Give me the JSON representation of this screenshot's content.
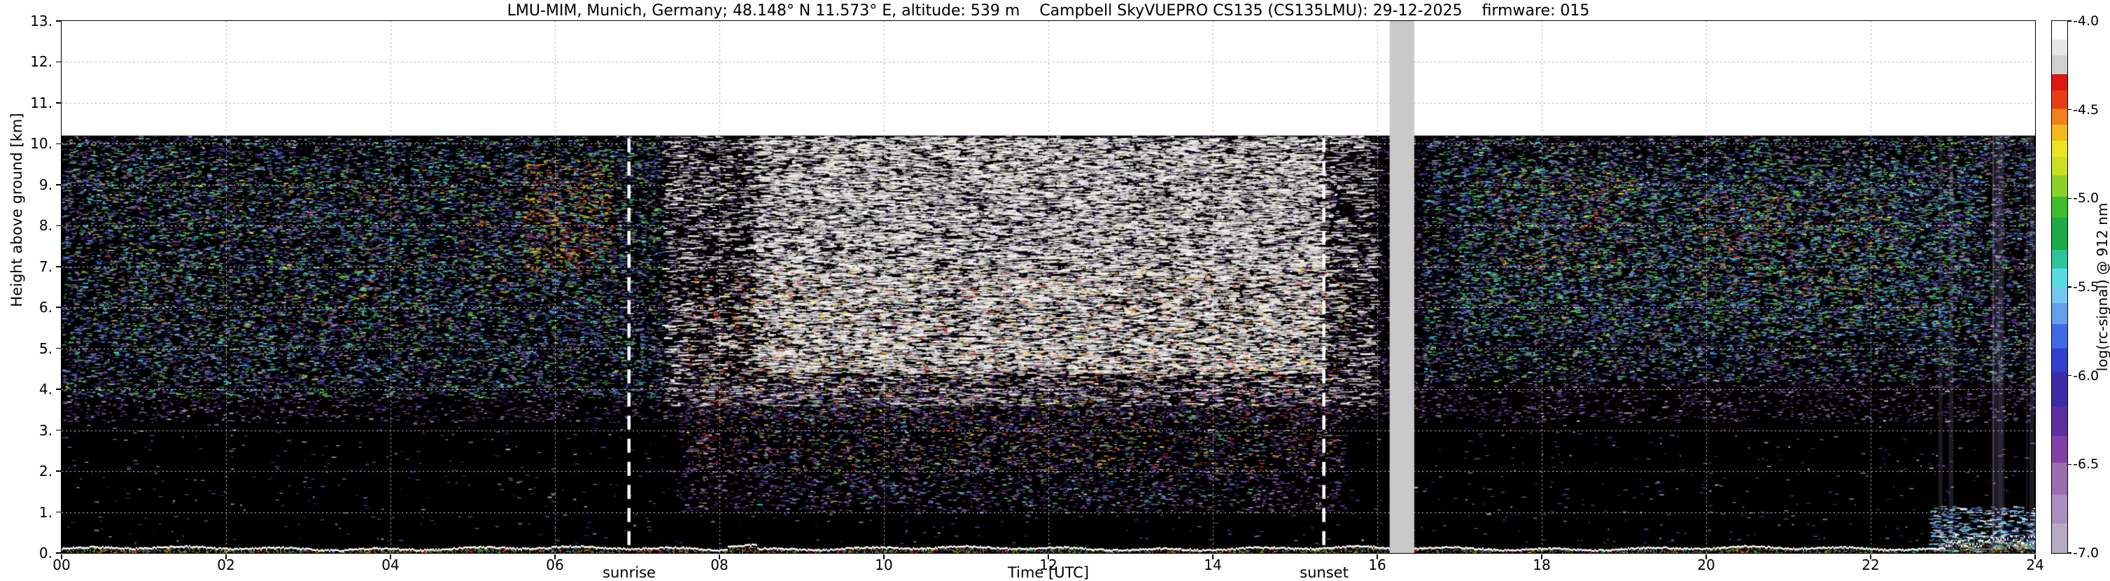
{
  "chart_data": {
    "type": "heatmap",
    "title": "LMU-MIM, Munich, Germany; 48.148° N 11.573° E, altitude: 539 m    Campbell SkyVUEPRO CS135 (CS135LMU): 29-12-2025    firmware: 015",
    "xlabel": "Time [UTC]",
    "ylabel": "Height above ground [km]",
    "xlim": [
      0,
      24
    ],
    "ylim": [
      0,
      13
    ],
    "x_ticks": [
      "00",
      "02",
      "04",
      "06",
      "08",
      "10",
      "12",
      "14",
      "16",
      "18",
      "20",
      "22",
      "24"
    ],
    "y_ticks": [
      "0.",
      "1.",
      "2.",
      "3.",
      "4.",
      "5.",
      "6.",
      "7.",
      "8.",
      "9.",
      "10.",
      "11.",
      "12.",
      "13."
    ],
    "grid": {
      "x_interval_hours": 2,
      "z_interval_km": 1,
      "style": "dotted"
    },
    "max_signal_height_km": 10.2,
    "background_above_signal": "#ffffff",
    "background_signal_area": "#000000",
    "annotations": [
      {
        "label": "sunrise",
        "x": 6.9,
        "style": "white-dashed-vline"
      },
      {
        "label": "sunset",
        "x": 15.35,
        "style": "white-dashed-vline"
      }
    ],
    "data_gap": {
      "x": [
        16.15,
        16.45
      ],
      "color": "#c9c9c9"
    },
    "colorbar": {
      "label": "log(rc-signal) @ 912 nm",
      "range": [
        -7.0,
        -4.0
      ],
      "tick_labels": [
        "-4.0",
        "-4.5",
        "-5.0",
        "-5.5",
        "-6.0",
        "-6.5",
        "-7.0"
      ],
      "stops": [
        [
          "#b7abc4",
          0,
          5.5
        ],
        [
          "#a98fbd",
          5.5,
          11
        ],
        [
          "#9a6cb0",
          11,
          17
        ],
        [
          "#8040a8",
          17,
          22
        ],
        [
          "#5c2fa0",
          22,
          27.5
        ],
        [
          "#3b2ba8",
          27.5,
          34
        ],
        [
          "#2f3fd0",
          34,
          38.5
        ],
        [
          "#3f6ae4",
          38.5,
          43
        ],
        [
          "#62a0ee",
          43,
          47
        ],
        [
          "#74c8f0",
          47,
          50
        ],
        [
          "#58dce4",
          50,
          53.5
        ],
        [
          "#2cc49c",
          53.5,
          57
        ],
        [
          "#1aaa48",
          57,
          63
        ],
        [
          "#3cbe2c",
          63,
          67
        ],
        [
          "#8ed02a",
          67,
          71
        ],
        [
          "#cade22",
          71,
          74.5
        ],
        [
          "#ece41e",
          74.5,
          77.5
        ],
        [
          "#f2b81c",
          77.5,
          80.5
        ],
        [
          "#f08018",
          80.5,
          83.5
        ],
        [
          "#e83c12",
          83.5,
          87
        ],
        [
          "#da1810",
          87,
          90
        ],
        [
          "#cfcfcf",
          90,
          93.5
        ],
        [
          "#e6e6e6",
          93.5,
          96.5
        ],
        [
          "#ffffff",
          96.5,
          100
        ]
      ]
    },
    "palettes": {
      "purple": [
        "#6a4596",
        "#84589e",
        "#9d7bb5",
        "#55307f",
        "#b9aec6",
        "#3a2a72"
      ],
      "cool": [
        "#3f6ae4",
        "#62a0ee",
        "#58dce4",
        "#2cc49c",
        "#3cbe2c",
        "#8ed02a",
        "#84589e",
        "#3b2ba8"
      ],
      "warm": [
        "#ece41e",
        "#f2b81c",
        "#f08018",
        "#e83c12",
        "#da1810"
      ],
      "bright": [
        "#ffffff",
        "#ededed",
        "#d9d9d9",
        "#f4ead8"
      ],
      "bright_blue": [
        "#ffffff",
        "#74c8f0",
        "#58dce4",
        "#3f6ae4",
        "#e8e8e8"
      ]
    },
    "speckle_regions": [
      {
        "name": "low-level-background",
        "x": [
          0,
          24
        ],
        "z": [
          0.25,
          3.2
        ],
        "density": "very_sparse",
        "palette": "purple"
      },
      {
        "name": "upper-background",
        "x": [
          0,
          24
        ],
        "z": [
          3.2,
          10.2
        ],
        "density": "moderate",
        "palette": "purple"
      },
      {
        "name": "night-aerosol",
        "x": [
          0,
          7.3
        ],
        "z": [
          3.8,
          10.15
        ],
        "density": "moderate",
        "palette": "cool"
      },
      {
        "name": "night-aerosol-upper",
        "x": [
          0.3,
          6.9
        ],
        "z": [
          5.0,
          9.8
        ],
        "density": "sparse",
        "palette": "cool"
      },
      {
        "name": "night-warm-specks",
        "x": [
          0.5,
          5.4
        ],
        "z": [
          5.5,
          9.5
        ],
        "density": "very_sparse",
        "palette": "warm"
      },
      {
        "name": "dawn-warm-cluster",
        "x": [
          5.6,
          6.7
        ],
        "z": [
          6.8,
          9.6
        ],
        "density": "moderate",
        "palette": "warm"
      },
      {
        "name": "day-cirrus",
        "x": [
          7.3,
          15.95
        ],
        "z": [
          3.6,
          10.2
        ],
        "density": "moderate",
        "palette": "bright"
      },
      {
        "name": "day-cirrus-core",
        "x": [
          8.4,
          15.3
        ],
        "z": [
          4.4,
          10.15
        ],
        "density": "dense",
        "palette": "bright"
      },
      {
        "name": "day-warm-streaks",
        "x": [
          7.6,
          15.6
        ],
        "z": [
          2.0,
          7.0
        ],
        "density": "sparse",
        "palette": "warm"
      },
      {
        "name": "day-low-speckle",
        "x": [
          7.5,
          15.6
        ],
        "z": [
          1.0,
          4.2
        ],
        "density": "moderate",
        "palette": "purple"
      },
      {
        "name": "day-low-cool",
        "x": [
          8.4,
          14.6
        ],
        "z": [
          1.2,
          3.8
        ],
        "density": "sparse",
        "palette": "cool"
      },
      {
        "name": "evening-aerosol",
        "x": [
          16.55,
          24
        ],
        "z": [
          4.2,
          10.15
        ],
        "density": "moderate",
        "palette": "cool"
      },
      {
        "name": "evening-aerosol-core",
        "x": [
          17.0,
          23.3
        ],
        "z": [
          5.3,
          9.5
        ],
        "density": "moderate",
        "palette": "cool"
      },
      {
        "name": "evening-warm-1",
        "x": [
          17.4,
          19.2
        ],
        "z": [
          6.8,
          9.3
        ],
        "density": "sparse",
        "palette": "warm"
      },
      {
        "name": "evening-warm-2",
        "x": [
          19.8,
          22.3
        ],
        "z": [
          6.3,
          8.8
        ],
        "density": "sparse",
        "palette": "warm"
      },
      {
        "name": "late-low-level",
        "x": [
          22.7,
          24
        ],
        "z": [
          0.05,
          1.15
        ],
        "density": "dense",
        "palette": "bright_blue"
      }
    ],
    "surface_layer": {
      "z": [
        0,
        0.22
      ],
      "description": "continuous strong near-surface backscatter return"
    },
    "vertical_stripes": {
      "x": [
        22.75,
        23.95
      ],
      "count": 10
    }
  }
}
